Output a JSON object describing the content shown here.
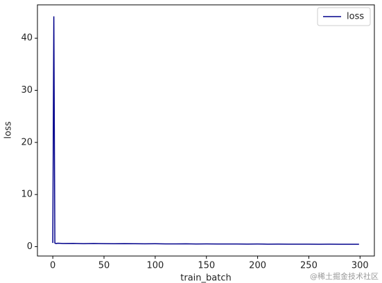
{
  "chart_data": {
    "type": "line",
    "xlabel": "train_batch",
    "ylabel": "loss",
    "x": [
      0,
      1,
      2,
      3,
      5,
      10,
      20,
      30,
      40,
      50,
      60,
      70,
      80,
      90,
      100,
      110,
      120,
      130,
      140,
      150,
      160,
      170,
      180,
      190,
      200,
      210,
      220,
      230,
      240,
      250,
      260,
      270,
      280,
      290,
      299
    ],
    "series": [
      {
        "name": "loss",
        "color": "#00008b",
        "values": [
          0.7,
          44.2,
          0.7,
          0.6,
          0.65,
          0.6,
          0.62,
          0.58,
          0.6,
          0.57,
          0.55,
          0.58,
          0.56,
          0.54,
          0.55,
          0.53,
          0.52,
          0.54,
          0.51,
          0.52,
          0.5,
          0.51,
          0.5,
          0.49,
          0.5,
          0.48,
          0.49,
          0.47,
          0.48,
          0.47,
          0.46,
          0.47,
          0.45,
          0.46,
          0.45
        ]
      }
    ],
    "xlim": [
      -15,
      314
    ],
    "ylim": [
      -1.8,
      46.4
    ],
    "xticks": [
      0,
      50,
      100,
      150,
      200,
      250,
      300
    ],
    "yticks": [
      0,
      10,
      20,
      30,
      40
    ],
    "legend": "upper right",
    "watermark": "@稀土掘金技术社区"
  }
}
